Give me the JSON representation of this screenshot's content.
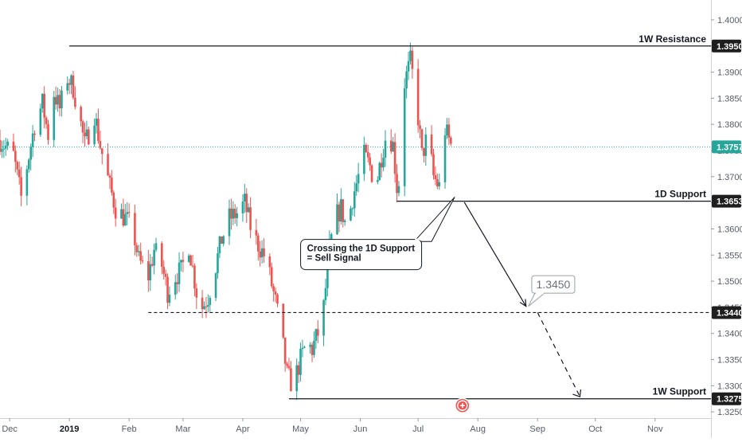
{
  "chart_data": {
    "type": "candlestick",
    "y_ticks": [
      1.4,
      1.395,
      1.39,
      1.385,
      1.38,
      1.375,
      1.37,
      1.365,
      1.36,
      1.355,
      1.35,
      1.345,
      1.34,
      1.335,
      1.33,
      1.325
    ],
    "y_tick_labels": [
      "1.4000",
      "1.3950",
      "1.3900",
      "1.3850",
      "1.3800",
      "1.3750",
      "1.3700",
      "1.3650",
      "1.3600",
      "1.3550",
      "1.3500",
      "1.3450",
      "1.3400",
      "1.3350",
      "1.3300",
      "1.3250"
    ],
    "ylim": [
      1.3238,
      1.4038
    ],
    "x_axis": {
      "first_date": "2018-11-26",
      "last_date": "2019-11-30",
      "ticks": [
        {
          "date": "2018-12-01",
          "label": "Dec",
          "bold": false
        },
        {
          "date": "2019-01-01",
          "label": "2019",
          "bold": true
        },
        {
          "date": "2019-02-01",
          "label": "Feb",
          "bold": false
        },
        {
          "date": "2019-03-01",
          "label": "Mar",
          "bold": false
        },
        {
          "date": "2019-04-01",
          "label": "Apr",
          "bold": false
        },
        {
          "date": "2019-05-01",
          "label": "May",
          "bold": false
        },
        {
          "date": "2019-06-01",
          "label": "Jun",
          "bold": false
        },
        {
          "date": "2019-07-01",
          "label": "Jul",
          "bold": false
        },
        {
          "date": "2019-08-01",
          "label": "Aug",
          "bold": false
        },
        {
          "date": "2019-09-01",
          "label": "Sep",
          "bold": false
        },
        {
          "date": "2019-10-01",
          "label": "Oct",
          "bold": false
        },
        {
          "date": "2019-11-01",
          "label": "Nov",
          "bold": false
        }
      ]
    },
    "price_path": [
      [
        "2018-11-26",
        1.377
      ],
      [
        "2018-12-03",
        1.374
      ],
      [
        "2018-12-07",
        1.366
      ],
      [
        "2018-12-10",
        1.372
      ],
      [
        "2018-12-14",
        1.38
      ],
      [
        "2018-12-18",
        1.384
      ],
      [
        "2018-12-21",
        1.378
      ],
      [
        "2018-12-24",
        1.386
      ],
      [
        "2018-12-27",
        1.383
      ],
      [
        "2018-12-31",
        1.389
      ],
      [
        "2019-01-03",
        1.387
      ],
      [
        "2019-01-07",
        1.38
      ],
      [
        "2019-01-09",
        1.376
      ],
      [
        "2019-01-14",
        1.382
      ],
      [
        "2019-01-17",
        1.376
      ],
      [
        "2019-01-22",
        1.368
      ],
      [
        "2019-01-25",
        1.364
      ],
      [
        "2019-01-30",
        1.362
      ],
      [
        "2019-02-03",
        1.36
      ],
      [
        "2019-02-06",
        1.354
      ],
      [
        "2019-02-11",
        1.351
      ],
      [
        "2019-02-14",
        1.356
      ],
      [
        "2019-02-18",
        1.353
      ],
      [
        "2019-02-21",
        1.348
      ],
      [
        "2019-02-25",
        1.351
      ],
      [
        "2019-02-28",
        1.352
      ],
      [
        "2019-03-04",
        1.357
      ],
      [
        "2019-03-08",
        1.348
      ],
      [
        "2019-03-11",
        1.345
      ],
      [
        "2019-03-14",
        1.347
      ],
      [
        "2019-03-18",
        1.353
      ],
      [
        "2019-03-21",
        1.358
      ],
      [
        "2019-03-25",
        1.362
      ],
      [
        "2019-03-29",
        1.363
      ],
      [
        "2019-04-02",
        1.365
      ],
      [
        "2019-04-06",
        1.359
      ],
      [
        "2019-04-09",
        1.357
      ],
      [
        "2019-04-12",
        1.355
      ],
      [
        "2019-04-15",
        1.351
      ],
      [
        "2019-04-18",
        1.346
      ],
      [
        "2019-04-21",
        1.34
      ],
      [
        "2019-04-24",
        1.332
      ],
      [
        "2019-04-27",
        1.33
      ],
      [
        "2019-05-01",
        1.335
      ],
      [
        "2019-05-04",
        1.338
      ],
      [
        "2019-05-07",
        1.337
      ],
      [
        "2019-05-10",
        1.34
      ],
      [
        "2019-05-13",
        1.345
      ],
      [
        "2019-05-16",
        1.356
      ],
      [
        "2019-05-19",
        1.362
      ],
      [
        "2019-05-22",
        1.364
      ],
      [
        "2019-05-25",
        1.36
      ],
      [
        "2019-05-28",
        1.366
      ],
      [
        "2019-05-31",
        1.37
      ],
      [
        "2019-06-03",
        1.374
      ],
      [
        "2019-06-06",
        1.372
      ],
      [
        "2019-06-09",
        1.368
      ],
      [
        "2019-06-12",
        1.374
      ],
      [
        "2019-06-15",
        1.379
      ],
      [
        "2019-06-18",
        1.376
      ],
      [
        "2019-06-20",
        1.368
      ],
      [
        "2019-06-22",
        1.37
      ],
      [
        "2019-06-24",
        1.388
      ],
      [
        "2019-06-27",
        1.392
      ],
      [
        "2019-06-30",
        1.385
      ],
      [
        "2019-07-03",
        1.374
      ],
      [
        "2019-07-06",
        1.378
      ],
      [
        "2019-07-09",
        1.37
      ],
      [
        "2019-07-12",
        1.368
      ],
      [
        "2019-07-15",
        1.379
      ],
      [
        "2019-07-18",
        1.376
      ]
    ],
    "current_price": 1.3757,
    "levels": [
      {
        "price": 1.395,
        "label": "1W Resistance",
        "badge": "1.3950",
        "style": "solid",
        "start_date": "2019-01-01"
      },
      {
        "price": 1.3653,
        "label": "1D Support",
        "badge": "1.3653",
        "style": "solid",
        "start_date": "2019-06-20"
      },
      {
        "price": 1.344,
        "label": "",
        "badge": "1.3440",
        "style": "dashed",
        "start_date": "2019-02-11"
      },
      {
        "price": 1.3275,
        "label": "1W Support",
        "badge": "1.3275",
        "style": "solid",
        "start_date": "2019-04-25"
      }
    ],
    "current_badge": "1.3757",
    "annotations": {
      "callout_text": [
        "Crossing the 1D Support",
        "= Sell Signal"
      ],
      "target_label": "1.3450"
    },
    "colors": {
      "up": "#26a69a",
      "down": "#ef5350",
      "current_line": "#26a69a",
      "badge_bg": "#1e1e1e",
      "current_badge_bg": "#26a69a",
      "line": "#131722"
    }
  }
}
